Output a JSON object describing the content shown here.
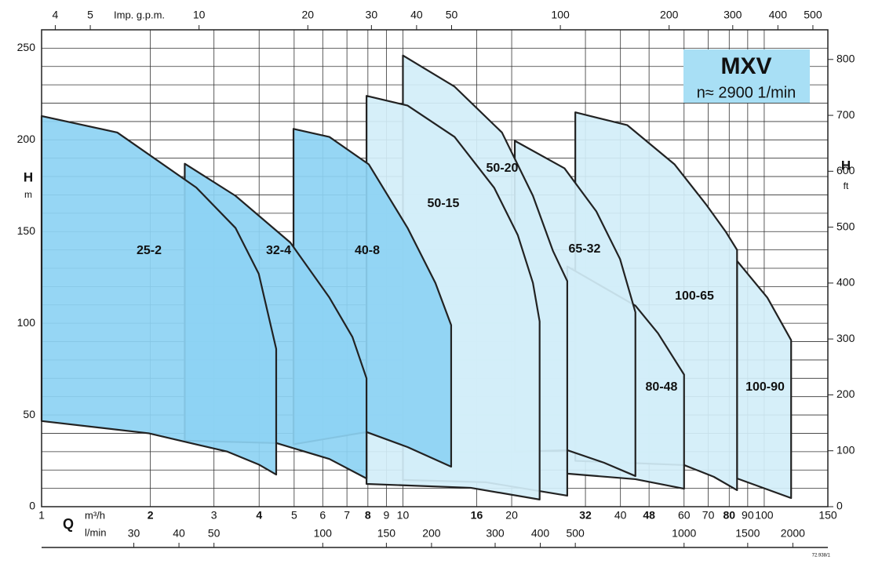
{
  "chart_data": {
    "type": "region",
    "title": "MXV",
    "subtitle": "n≈ 2900 1/min",
    "y_label": "H",
    "y_unit": "m",
    "y2_label": "H",
    "y2_unit": "ft",
    "x_label": "Q",
    "x_unit": "m³/h",
    "x2_unit": "l/min",
    "x3_unit": "Imp. g.p.m.",
    "code": "72.938/1",
    "log_x": true,
    "grid": true,
    "xlim": [
      1,
      150
    ],
    "xticks": [
      1,
      2,
      3,
      4,
      5,
      6,
      7,
      8,
      9,
      10,
      16,
      20,
      32,
      40,
      48,
      60,
      70,
      80,
      90,
      100,
      150
    ],
    "x2lim": [
      16.667,
      2500
    ],
    "x2ticks": [
      30,
      40,
      50,
      100,
      150,
      200,
      300,
      400,
      500,
      1000,
      1500,
      2000
    ],
    "x3lim": [
      3.666,
      550
    ],
    "x3ticks": [
      4,
      5,
      10,
      20,
      30,
      40,
      50,
      100,
      200,
      300,
      400,
      500
    ],
    "ylim": [
      0,
      260
    ],
    "yticks": [
      0,
      50,
      100,
      150,
      200,
      250
    ],
    "ygrid": [
      10,
      20,
      30,
      40,
      60,
      70,
      80,
      90,
      110,
      120,
      130,
      140,
      160,
      170,
      180,
      190,
      210,
      220,
      230,
      240,
      260
    ],
    "y2lim": [
      0,
      853
    ],
    "y2ticks": [
      0,
      100,
      200,
      300,
      400,
      500,
      600,
      700,
      800
    ],
    "series": [
      {
        "name": "25-2",
        "color": "#8dd3f3",
        "x": [
          1,
          1.62,
          2.68,
          3.44,
          3.99,
          4.46,
          4.46,
          3.99,
          3.27,
          1.98,
          1
        ],
        "values": [
          213,
          204,
          174,
          152,
          127,
          86,
          17.5,
          23,
          30,
          40,
          46.7
        ]
      },
      {
        "name": "32-4",
        "color": "#8dd3f3",
        "x": [
          2.49,
          3.44,
          4.88,
          6.26,
          7.25,
          7.93,
          7.93,
          6.26,
          4.46,
          2.49
        ],
        "values": [
          187,
          169.5,
          144,
          114,
          92.5,
          70,
          15.4,
          26,
          34.7,
          36
        ]
      },
      {
        "name": "40-8",
        "color": "#8dd3f3",
        "x": [
          4.98,
          6.26,
          8.05,
          10.3,
          12.3,
          13.6,
          13.6,
          10.3,
          7.93,
          4.98
        ],
        "values": [
          206,
          201.6,
          186.6,
          152,
          122,
          99,
          21.8,
          32.5,
          40.7,
          34
        ]
      },
      {
        "name": "50-15",
        "color": "#d3eef9",
        "x": [
          7.93,
          10.3,
          13.9,
          17.9,
          20.8,
          22.9,
          23.9,
          23.9,
          15.4,
          7.93
        ],
        "values": [
          224,
          218.7,
          201.6,
          173.8,
          148,
          122,
          101,
          3.9,
          10.3,
          12.4
        ]
      },
      {
        "name": "50-20",
        "color": "#d3eef9",
        "x": [
          10,
          13.9,
          18.8,
          22.9,
          26,
          28.5,
          28.5,
          17,
          10
        ],
        "values": [
          246,
          229,
          204,
          169.5,
          139.6,
          123,
          6,
          13.3,
          14.6
        ]
      },
      {
        "name": "65-32",
        "color": "#d3eef9",
        "x": [
          20.4,
          28,
          34.3,
          39.9,
          44,
          44,
          36,
          28.5,
          20.4
        ],
        "values": [
          199.5,
          184.5,
          161,
          135,
          106,
          16.7,
          24,
          30.8,
          30
        ]
      },
      {
        "name": "80-48",
        "color": "#d3eef9",
        "x": [
          28.5,
          44,
          50.8,
          60,
          60,
          44,
          28.5
        ],
        "values": [
          131,
          109.6,
          94.6,
          72,
          9.8,
          15,
          18
        ]
      },
      {
        "name": "100-65",
        "color": "#d3eef9",
        "x": [
          30,
          41.8,
          56.5,
          68.9,
          78.2,
          84.1,
          84.1,
          72.5,
          60,
          30
        ],
        "values": [
          215,
          208,
          186.6,
          165,
          150,
          140,
          9,
          16.3,
          22.7,
          25
        ]
      },
      {
        "name": "100-90",
        "color": "#d3eef9",
        "x": [
          84.1,
          102,
          118.7,
          118.7,
          84.1
        ],
        "values": [
          134,
          114,
          90.8,
          4.7,
          15.4
        ]
      }
    ]
  }
}
